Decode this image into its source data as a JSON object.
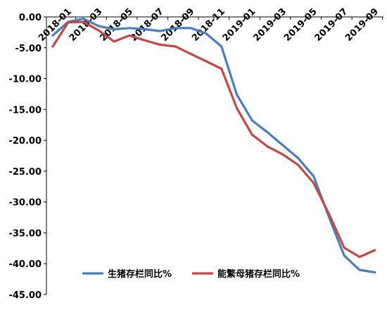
{
  "chart_data": {
    "type": "line",
    "title": "",
    "xlabel": "",
    "ylabel": "",
    "ylim": [
      -45,
      0
    ],
    "yticks": [
      0,
      -5,
      -10,
      -15,
      -20,
      -25,
      -30,
      -35,
      -40,
      -45
    ],
    "ytick_labels": [
      "0.00",
      "-5.00",
      "-10.00",
      "-15.00",
      "-20.00",
      "-25.00",
      "-30.00",
      "-35.00",
      "-40.00",
      "-45.00"
    ],
    "categories": [
      "2018-01",
      "2018-02",
      "2018-03",
      "2018-04",
      "2018-05",
      "2018-06",
      "2018-07",
      "2018-08",
      "2018-09",
      "2018-10",
      "2018-11",
      "2018-12",
      "2019-01",
      "2019-02",
      "2019-03",
      "2019-04",
      "2019-05",
      "2019-06",
      "2019-07",
      "2019-08",
      "2019-09",
      "2019-10"
    ],
    "xtick_labels": [
      "2018-01",
      "2018-03",
      "2018-05",
      "2018-07",
      "2018-09",
      "2018-11",
      "2019-01",
      "2019-03",
      "2019-05",
      "2019-07",
      "2019-09"
    ],
    "xtick_indices": [
      0,
      2,
      4,
      6,
      8,
      10,
      12,
      14,
      16,
      18,
      20
    ],
    "legend_position": "bottom",
    "grid": false,
    "series": [
      {
        "name": "生猪存栏同比%",
        "color": "#4a7ebb",
        "values": [
          -3.0,
          -0.8,
          -0.3,
          -1.5,
          -2.0,
          -1.8,
          -2.0,
          -2.3,
          -1.8,
          -1.8,
          -2.7,
          -4.8,
          -12.6,
          -16.8,
          -18.7,
          -20.8,
          -22.9,
          -25.8,
          -32.4,
          -38.7,
          -41.0,
          -41.4
        ]
      },
      {
        "name": "能繁母猪存栏同比%",
        "color": "#be4b48",
        "values": [
          -4.8,
          -0.9,
          -0.8,
          -2.2,
          -4.0,
          -3.0,
          -3.8,
          -4.5,
          -4.8,
          -6.0,
          -7.2,
          -8.4,
          -14.8,
          -19.1,
          -21.0,
          -22.3,
          -24.0,
          -26.9,
          -31.9,
          -37.4,
          -38.9,
          -37.8
        ]
      }
    ]
  }
}
